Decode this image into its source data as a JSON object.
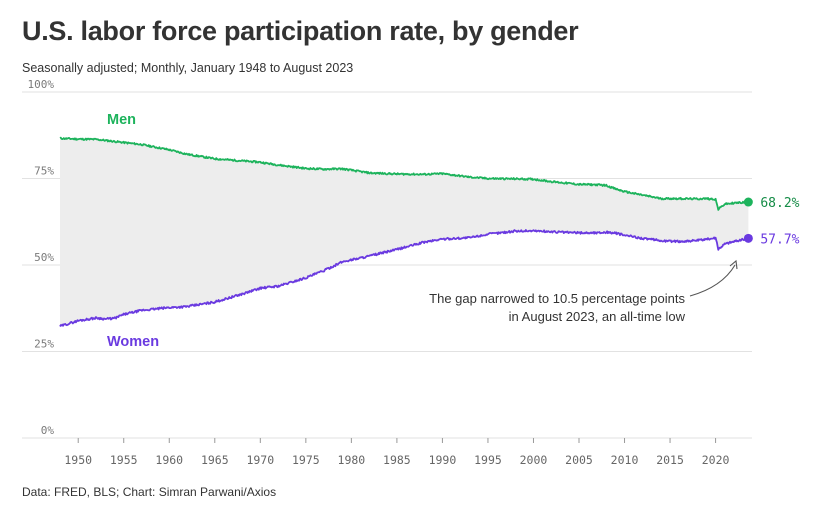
{
  "header": {
    "title": "U.S. labor force participation rate, by gender",
    "subtitle": "Seasonally adjusted; Monthly, January 1948 to August 2023",
    "source": "Data: FRED, BLS; Chart: Simran Parwani/Axios"
  },
  "colors": {
    "men": "#1db35c",
    "women": "#6a3ae0",
    "gap_fill": "#ededed",
    "grid": "#e2e2e2"
  },
  "chart_data": {
    "type": "line",
    "title": "U.S. labor force participation rate, by gender",
    "xlabel": "",
    "ylabel": "",
    "xlim": [
      1948,
      2024
    ],
    "ylim": [
      0,
      100
    ],
    "y_ticks": [
      0,
      25,
      50,
      75,
      100
    ],
    "y_tick_labels": [
      "0%",
      "25%",
      "50%",
      "75%",
      "100%"
    ],
    "x_ticks": [
      1950,
      1955,
      1960,
      1965,
      1970,
      1975,
      1980,
      1985,
      1990,
      1995,
      2000,
      2005,
      2010,
      2015,
      2020
    ],
    "x_tick_labels": [
      "1950",
      "1955",
      "1960",
      "1965",
      "1970",
      "1975",
      "1980",
      "1985",
      "1990",
      "1995",
      "2000",
      "2005",
      "2010",
      "2015",
      "2020"
    ],
    "series": [
      {
        "name": "Men",
        "end_label": "68.2%",
        "x": [
          1948,
          1950,
          1952,
          1953,
          1955,
          1957,
          1960,
          1962,
          1965,
          1968,
          1970,
          1972,
          1975,
          1977,
          1979,
          1980,
          1982,
          1985,
          1988,
          1990,
          1993,
          1995,
          1998,
          2000,
          2002,
          2005,
          2007,
          2008,
          2009,
          2010,
          2012,
          2014,
          2016,
          2018,
          2019,
          2020,
          2020.3,
          2021,
          2022,
          2023.6
        ],
        "values": [
          86.6,
          86.4,
          86.3,
          86.0,
          85.4,
          84.8,
          83.3,
          82.0,
          80.7,
          80.1,
          79.7,
          78.9,
          77.9,
          77.7,
          77.8,
          77.4,
          76.6,
          76.3,
          76.2,
          76.4,
          75.4,
          75.0,
          74.9,
          74.8,
          74.1,
          73.3,
          73.2,
          73.0,
          72.0,
          71.2,
          70.2,
          69.2,
          69.2,
          69.1,
          69.2,
          69.0,
          66.1,
          67.6,
          67.9,
          68.2
        ]
      },
      {
        "name": "Women",
        "end_label": "57.7%",
        "x": [
          1948,
          1950,
          1952,
          1953,
          1954,
          1955,
          1957,
          1960,
          1962,
          1965,
          1968,
          1970,
          1972,
          1975,
          1977,
          1979,
          1980,
          1982,
          1985,
          1988,
          1990,
          1993,
          1995,
          1998,
          2000,
          2002,
          2005,
          2007,
          2008,
          2009,
          2010,
          2012,
          2014,
          2016,
          2018,
          2019,
          2020,
          2020.3,
          2021,
          2022,
          2023.6
        ],
        "values": [
          32.3,
          33.9,
          34.7,
          34.4,
          34.6,
          35.7,
          36.9,
          37.7,
          38.0,
          39.3,
          41.6,
          43.3,
          43.9,
          46.3,
          48.4,
          50.9,
          51.5,
          52.6,
          54.5,
          56.6,
          57.5,
          57.9,
          58.9,
          59.8,
          59.9,
          59.6,
          59.3,
          59.3,
          59.5,
          59.2,
          58.6,
          57.7,
          57.0,
          56.8,
          57.1,
          57.4,
          57.9,
          54.6,
          56.1,
          56.8,
          57.7
        ]
      }
    ],
    "annotation": "The gap narrowed to 10.5 percentage points in August 2023, an all-time low",
    "annotation_lines": [
      "The gap narrowed to 10.5 percentage points",
      "in August 2023, an all-time low"
    ]
  }
}
